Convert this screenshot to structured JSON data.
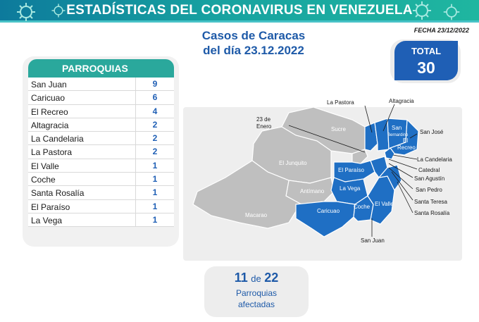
{
  "header": {
    "title": "ESTADÍSTICAS DEL CORONAVIRUS EN VENEZUELA",
    "fecha": "FECHA 23/12/2022"
  },
  "subtitle": {
    "line1": "Casos de Caracas",
    "line2": "del día 23.12.2022"
  },
  "total": {
    "label": "TOTAL",
    "value": "30"
  },
  "table": {
    "header": "PARROQUIAS",
    "rows": [
      {
        "name": "San Juan",
        "value": "9"
      },
      {
        "name": "Caricuao",
        "value": "6"
      },
      {
        "name": "El Recreo",
        "value": "4"
      },
      {
        "name": "Altagracia",
        "value": "2"
      },
      {
        "name": "La Candelaria",
        "value": "2"
      },
      {
        "name": "La Pastora",
        "value": "2"
      },
      {
        "name": "El Valle",
        "value": "1"
      },
      {
        "name": "Coche",
        "value": "1"
      },
      {
        "name": "Santa Rosalía",
        "value": "1"
      },
      {
        "name": "El Paraíso",
        "value": "1"
      },
      {
        "name": "La Vega",
        "value": "1"
      }
    ]
  },
  "map": {
    "colors": {
      "affected": "#1f6fc4",
      "unaffected": "#bfbfbf",
      "border": "#ffffff"
    },
    "labels": {
      "la_pastora": "La Pastora",
      "altagracia": "Altagracia",
      "veintitres": "23 de",
      "veintitres2": "Enero",
      "san_jose": "San José",
      "sucre": "Sucre",
      "san_bernardino": "San",
      "san_bernardino2": "Bernardino",
      "el_recreo": "El",
      "el_recreo2": "Recreo",
      "la_candelaria": "La Candelaria",
      "el_junquito": "El Junquito",
      "el_paraiso": "El Paraíso",
      "catedral": "Catedral",
      "san_agustin": "San Agustín",
      "antimano": "Antímano",
      "la_vega": "La Vega",
      "san_pedro": "San Pedro",
      "santa_teresa": "Santa Teresa",
      "santa_rosalia": "Santa Rosalía",
      "caricuao": "Caricuao",
      "coche": "Coche",
      "el_valle": "El Valle",
      "macarao": "Macarao",
      "san_juan": "San Juan"
    }
  },
  "summary": {
    "affected": "11",
    "de": "de",
    "total": "22",
    "line2": "Parroquias",
    "line3": "afectadas"
  }
}
